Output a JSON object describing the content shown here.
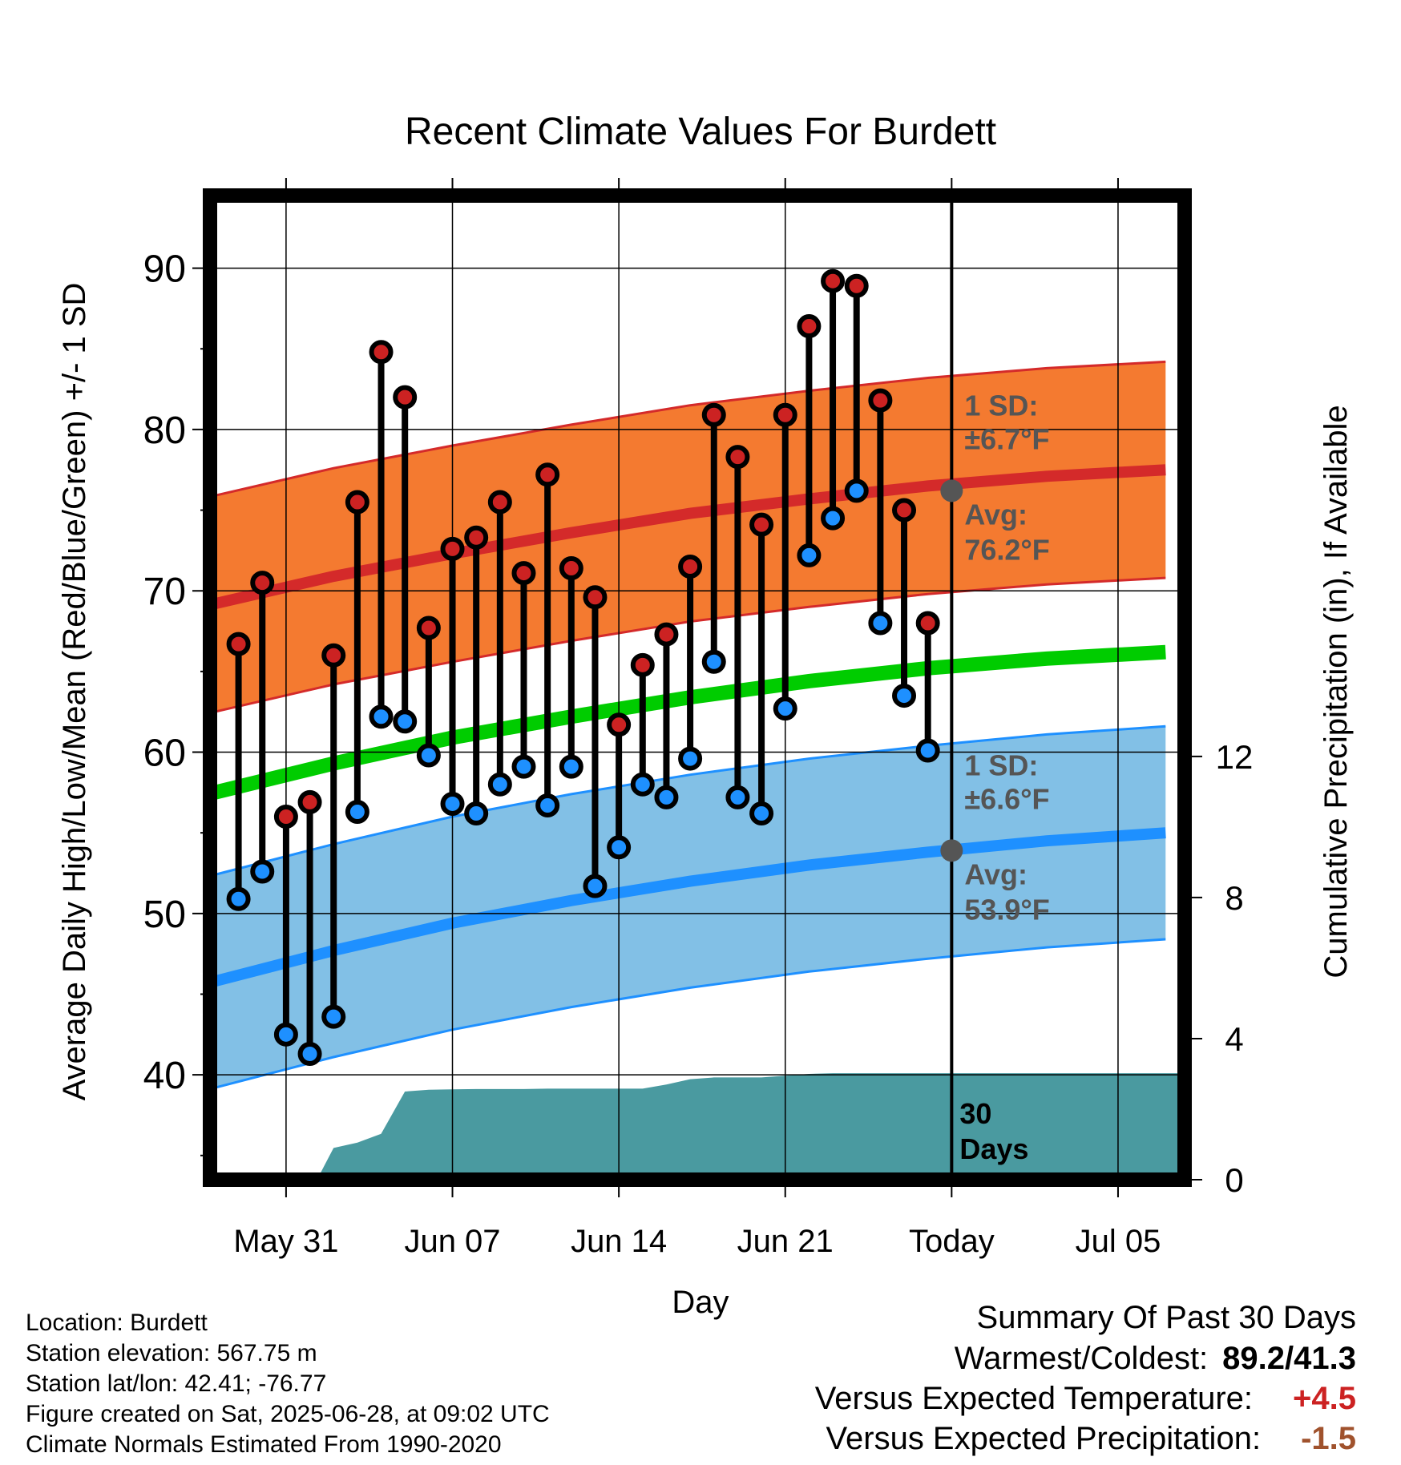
{
  "chart_data": {
    "type": "line",
    "title": "Recent Climate Values For Burdett",
    "xlabel": "Day",
    "ylabel": "Average Daily High/Low/Mean (Red/Blue/Green) +/- 1 SD",
    "y2label": "Cumulative Precipitation (in), If Available",
    "ylim": [
      33.5,
      94.5
    ],
    "y2lim": [
      0,
      27.9
    ],
    "xlim": [
      -3.2,
      37.8
    ],
    "x_ticks": [
      {
        "day": 0,
        "label": "May 31"
      },
      {
        "day": 7,
        "label": "Jun 07"
      },
      {
        "day": 14,
        "label": "Jun 14"
      },
      {
        "day": 21,
        "label": "Jun 21"
      },
      {
        "day": 28,
        "label": "Today"
      },
      {
        "day": 35,
        "label": "Jul 05"
      }
    ],
    "y_ticks": [
      40,
      50,
      60,
      70,
      80,
      90
    ],
    "y2_ticks": [
      0,
      4,
      8,
      12
    ],
    "today_day": 28,
    "grid": true,
    "series": [
      {
        "name": "High",
        "color": "#cc2222",
        "x": [
          -2,
          -1,
          0,
          1,
          2,
          3,
          4,
          5,
          6,
          7,
          8,
          9,
          10,
          11,
          12,
          13,
          14,
          15,
          16,
          17,
          18,
          19,
          20,
          21,
          22,
          23,
          24,
          25,
          26,
          27
        ],
        "values": [
          66.7,
          70.5,
          56.0,
          56.9,
          66.0,
          75.5,
          84.8,
          82.0,
          67.7,
          72.6,
          73.3,
          75.5,
          71.1,
          77.2,
          71.4,
          69.6,
          61.7,
          65.4,
          67.3,
          71.5,
          80.9,
          78.3,
          74.1,
          80.9,
          86.4,
          89.2,
          88.9,
          81.8,
          75.0,
          68.0
        ]
      },
      {
        "name": "Low",
        "color": "#1e90ff",
        "x": [
          -2,
          -1,
          0,
          1,
          2,
          3,
          4,
          5,
          6,
          7,
          8,
          9,
          10,
          11,
          12,
          13,
          14,
          15,
          16,
          17,
          18,
          19,
          20,
          21,
          22,
          23,
          24,
          25,
          26,
          27
        ],
        "values": [
          50.9,
          52.6,
          42.5,
          41.3,
          43.6,
          56.3,
          62.2,
          61.9,
          59.8,
          56.8,
          56.2,
          58.0,
          59.1,
          56.7,
          59.1,
          51.7,
          54.1,
          58.0,
          57.2,
          59.6,
          65.6,
          57.2,
          56.2,
          62.7,
          72.2,
          74.5,
          76.2,
          68.0,
          63.5,
          60.1
        ]
      }
    ],
    "normals": {
      "x": [
        -3,
        2,
        7,
        12,
        17,
        22,
        27,
        32,
        37
      ],
      "high_avg": [
        69.2,
        70.9,
        72.3,
        73.6,
        74.8,
        75.7,
        76.5,
        77.1,
        77.5
      ],
      "high_sd": 6.7,
      "low_avg": [
        45.8,
        47.7,
        49.4,
        50.8,
        52.0,
        53.0,
        53.8,
        54.5,
        55.0
      ],
      "low_sd": 6.6,
      "mean_avg": [
        57.5,
        59.3,
        60.9,
        62.2,
        63.4,
        64.4,
        65.2,
        65.8,
        66.2
      ]
    },
    "precipitation": {
      "name": "Cumulative Precipitation",
      "color": "#4a9aa0",
      "x": [
        1.3,
        2,
        3,
        4,
        5,
        6,
        7,
        8,
        9,
        10,
        11,
        12,
        13,
        14,
        15,
        16,
        17,
        18,
        19,
        20,
        21,
        22,
        23,
        28,
        37.8
      ],
      "values": [
        0,
        0.9,
        1.05,
        1.3,
        2.5,
        2.55,
        2.56,
        2.57,
        2.57,
        2.57,
        2.58,
        2.58,
        2.58,
        2.58,
        2.58,
        2.7,
        2.85,
        2.9,
        2.9,
        2.9,
        2.95,
        3.0,
        3.02,
        3.02,
        3.02
      ]
    },
    "annotations": {
      "high_sd_label": "1 SD:",
      "high_sd_value": "±6.7°F",
      "high_avg_label": "Avg:",
      "high_avg_value": "76.2°F",
      "high_avg_today": 76.2,
      "low_sd_label": "1 SD:",
      "low_sd_value": "±6.6°F",
      "low_avg_label": "Avg:",
      "low_avg_value": "53.9°F",
      "low_avg_today": 53.9,
      "days_number": "30",
      "days_word": "Days"
    }
  },
  "info": {
    "location": "Location: Burdett",
    "elevation": "Station elevation: 567.75 m",
    "latlon": "Station lat/lon: 42.41; -76.77",
    "created": "Figure created on Sat, 2025-06-28, at 09:02 UTC",
    "normals": "Climate Normals Estimated From 1990-2020"
  },
  "summary": {
    "heading": "Summary Of Past 30 Days",
    "warm_cold_label": "Warmest/Coldest:",
    "warm_cold_value": "89.2/41.3",
    "temp_label": "Versus Expected Temperature:",
    "temp_value": "+4.5",
    "temp_color": "#cc2222",
    "precip_label": "Versus Expected Precipitation:",
    "precip_value": "-1.5",
    "precip_color": "#a0522d"
  },
  "colors": {
    "high_band": "#f47a30",
    "high_line": "#d42a2a",
    "low_band": "#82c0e6",
    "low_line": "#1e90ff",
    "mean_line": "#00cc00",
    "precip_fill": "#4a9aa0",
    "avg_dot": "#555555",
    "annotation_text": "#555555"
  }
}
